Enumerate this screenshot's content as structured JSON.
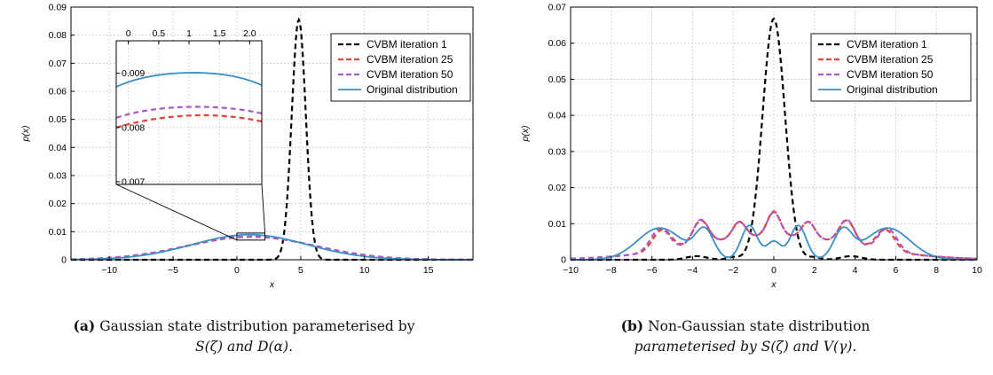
{
  "chart_data": [
    {
      "type": "line",
      "ylabel": "p(x)",
      "xlabel": "x",
      "xlim": [
        -13,
        18.5
      ],
      "ylim": [
        0,
        0.09
      ],
      "xticks": [
        "−10",
        "−5",
        "0",
        "5",
        "10",
        "15"
      ],
      "xtick_values": [
        -10,
        -5,
        0,
        5,
        10,
        15
      ],
      "yticks": [
        "0",
        "0.01",
        "0.02",
        "0.03",
        "0.04",
        "0.05",
        "0.06",
        "0.07",
        "0.08",
        "0.09"
      ],
      "ytick_values": [
        0,
        0.01,
        0.02,
        0.03,
        0.04,
        0.05,
        0.06,
        0.07,
        0.08,
        0.09
      ],
      "grid": true,
      "legend_position": "top-right",
      "series": [
        {
          "name": "CVBM iteration 1",
          "color": "#000000",
          "style": "dashed",
          "gaussians": [
            [
              0.0855,
              4.85,
              0.55
            ]
          ]
        },
        {
          "name": "CVBM iteration 25",
          "color": "#e8413c",
          "style": "dashed",
          "gaussians": [
            [
              0.00815,
              1.15,
              5.0
            ]
          ]
        },
        {
          "name": "CVBM iteration 50",
          "color": "#a75bc4",
          "style": "dashed",
          "gaussians": [
            [
              0.00825,
              1.1,
              5.0
            ]
          ]
        },
        {
          "name": "Original distribution",
          "color": "#3a8fc4",
          "style": "solid",
          "gaussians": [
            [
              0.00893,
              1.0,
              4.5
            ]
          ]
        }
      ],
      "inset": {
        "xlim": [
          -0.2,
          2.2
        ],
        "ylim": [
          0.00695,
          0.0096
        ],
        "xticks": [
          "0",
          "0.5",
          "1",
          "1.5",
          "2.0"
        ],
        "xtick_values": [
          0,
          0.5,
          1,
          1.5,
          2.0
        ],
        "yticks": [
          "0.007",
          "0.008",
          "0.009"
        ],
        "ytick_values": [
          0.007,
          0.008,
          0.009
        ],
        "zoom_box": {
          "x": [
            0,
            2.2
          ],
          "y": [
            0.007,
            0.0095
          ]
        },
        "series": [
          {
            "color": "#3a8fc4",
            "style": "solid",
            "points": [
              [
                -0.2,
                0.00875
              ],
              [
                0.4,
                0.00895
              ],
              [
                1.0,
                0.00901
              ],
              [
                1.6,
                0.00897
              ],
              [
                2.2,
                0.00878
              ]
            ]
          },
          {
            "color": "#a75bc4",
            "style": "dashed",
            "points": [
              [
                -0.2,
                0.00818
              ],
              [
                0.4,
                0.00833
              ],
              [
                1.0,
                0.00838
              ],
              [
                1.6,
                0.00836
              ],
              [
                2.2,
                0.00826
              ]
            ]
          },
          {
            "color": "#e8413c",
            "style": "dashed",
            "points": [
              [
                -0.2,
                0.008
              ],
              [
                0.4,
                0.00815
              ],
              [
                1.0,
                0.00822
              ],
              [
                1.6,
                0.00821
              ],
              [
                2.2,
                0.00811
              ]
            ]
          }
        ]
      }
    },
    {
      "type": "line",
      "ylabel": "p(x)",
      "xlabel": "x",
      "xlim": [
        -10,
        10
      ],
      "ylim": [
        0,
        0.07
      ],
      "xticks": [
        "−10",
        "−8",
        "−6",
        "−4",
        "−2",
        "0",
        "2",
        "4",
        "6",
        "8",
        "10"
      ],
      "xtick_values": [
        -10,
        -8,
        -6,
        -4,
        -2,
        0,
        2,
        4,
        6,
        8,
        10
      ],
      "yticks": [
        "0",
        "0.01",
        "0.02",
        "0.03",
        "0.04",
        "0.05",
        "0.06",
        "0.07"
      ],
      "ytick_values": [
        0,
        0.01,
        0.02,
        0.03,
        0.04,
        0.05,
        0.06,
        0.07
      ],
      "grid": true,
      "legend_position": "top-right",
      "series": [
        {
          "name": "CVBM iteration 1",
          "color": "#000000",
          "style": "dashed",
          "gaussians": [
            [
              0.0668,
              0,
              0.55
            ],
            [
              0.001,
              -3.8,
              0.5
            ],
            [
              0.001,
              3.8,
              0.5
            ],
            [
              0.0007,
              -2.0,
              0.3
            ],
            [
              0.0007,
              2.0,
              0.3
            ]
          ]
        },
        {
          "name": "CVBM iteration 25",
          "color": "#e8413c",
          "style": "dashed",
          "gaussians": [
            [
              0.0066,
              0,
              4.0
            ],
            [
              0.0068,
              0,
              0.32
            ],
            [
              0.0045,
              -1.7,
              0.32
            ],
            [
              0.0045,
              1.7,
              0.32
            ],
            [
              0.0065,
              -3.6,
              0.38
            ],
            [
              0.0065,
              3.6,
              0.38
            ],
            [
              0.0058,
              -5.5,
              0.45
            ],
            [
              0.0058,
              5.5,
              0.45
            ]
          ]
        },
        {
          "name": "CVBM iteration 50",
          "color": "#a75bc4",
          "style": "dashed",
          "gaussians": [
            [
              0.0066,
              0,
              4.0
            ],
            [
              0.0066,
              0,
              0.32
            ],
            [
              0.0045,
              -1.7,
              0.32
            ],
            [
              0.0045,
              1.7,
              0.32
            ],
            [
              0.0067,
              -3.6,
              0.38
            ],
            [
              0.0067,
              3.6,
              0.38
            ],
            [
              0.0062,
              -5.6,
              0.45
            ],
            [
              0.0062,
              5.6,
              0.45
            ]
          ]
        },
        {
          "name": "Original distribution",
          "color": "#3a8fc4",
          "style": "solid",
          "gaussians": [
            [
              0.005,
              0,
              0.35
            ],
            [
              0.0095,
              -1.2,
              0.4
            ],
            [
              0.0095,
              1.2,
              0.4
            ],
            [
              0.0078,
              -3.4,
              0.45
            ],
            [
              0.0078,
              3.4,
              0.45
            ],
            [
              0.0088,
              -5.6,
              1.1
            ],
            [
              0.0088,
              5.6,
              1.1
            ]
          ]
        }
      ]
    }
  ],
  "captions": {
    "a_label": "(a)",
    "a_line1": "Gaussian state distribution parameterised by",
    "a_line2": "S(ζ) and D(α).",
    "b_label": "(b)",
    "b_line1": "Non-Gaussian state distribution",
    "b_line2": "parameterised by S(ζ) and V(γ)."
  }
}
